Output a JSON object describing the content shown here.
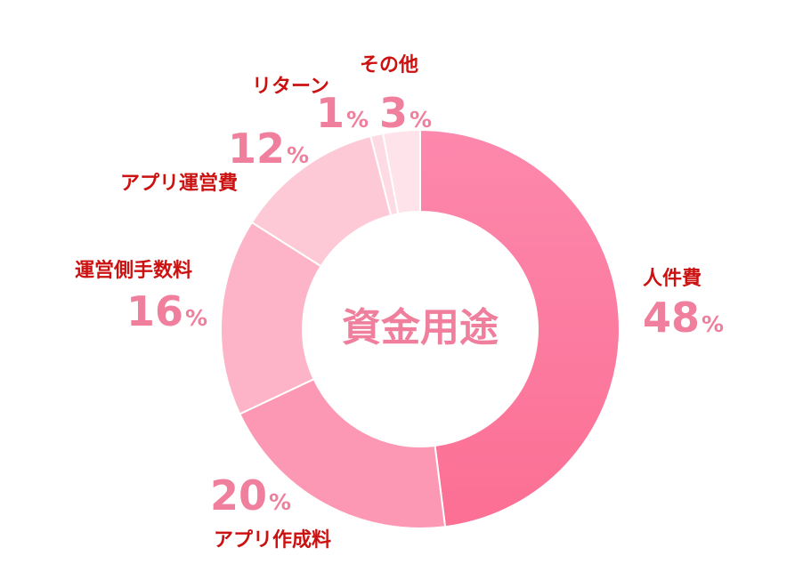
{
  "chart_data": {
    "type": "pie",
    "title": "資金用途",
    "unit": "%",
    "categories": [
      "人件費",
      "アプリ作成料",
      "運営側手数料",
      "アプリ運営費",
      "リターン",
      "その他"
    ],
    "values": [
      48,
      20,
      16,
      12,
      1,
      3
    ],
    "colors": [
      "#fb7ea3",
      "#fc98b4",
      "#fdb4c8",
      "#fec9d7",
      "#fedbe4",
      "#fee3ea"
    ],
    "label_color": "#cc1111",
    "value_color": "#ef7f9d",
    "center_title_color": "#ef7f9d"
  }
}
